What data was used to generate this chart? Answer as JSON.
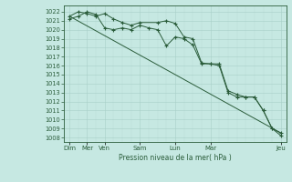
{
  "bg_color": "#c6e8e2",
  "grid_color_major": "#a8cfc8",
  "grid_color_minor": "#b8dcd8",
  "line_color": "#2a5c3a",
  "marker_color": "#2a5c3a",
  "xlabel_text": "Pression niveau de la mer( hPa )",
  "xlim": [
    -0.3,
    12.3
  ],
  "ylim": [
    1007.5,
    1022.7
  ],
  "yticks": [
    1008,
    1009,
    1010,
    1011,
    1012,
    1013,
    1014,
    1015,
    1016,
    1017,
    1018,
    1019,
    1020,
    1021,
    1022
  ],
  "xtick_positions": [
    0,
    1,
    2,
    4,
    6,
    8,
    12
  ],
  "xtick_labels": [
    "Dim",
    "Mer",
    "Ven",
    "Sam",
    "Lun",
    "Mar",
    "Jeu"
  ],
  "series": [
    {
      "x": [
        0,
        12
      ],
      "y": [
        1021.5,
        1008.5
      ],
      "has_markers": false
    },
    {
      "x": [
        0,
        0.5,
        1.0,
        1.5,
        2.0,
        2.5,
        3.0,
        3.5,
        4.0,
        5.0,
        5.5,
        6.0,
        6.5,
        7.0,
        7.5,
        8.0,
        8.5,
        9.0,
        9.5,
        10.0,
        10.5,
        11.0,
        11.5,
        12.0
      ],
      "y": [
        1021.5,
        1022.0,
        1021.8,
        1021.5,
        1021.8,
        1021.2,
        1020.8,
        1020.5,
        1020.8,
        1020.8,
        1021.0,
        1020.7,
        1019.2,
        1019.0,
        1016.3,
        1016.2,
        1016.2,
        1013.2,
        1012.8,
        1012.5,
        1012.5,
        1011.0,
        1009.0,
        1008.2
      ],
      "has_markers": true
    },
    {
      "x": [
        0,
        0.5,
        1.0,
        1.5,
        2.0,
        2.5,
        3.0,
        3.5,
        4.0,
        4.5,
        5.0,
        5.5,
        6.0,
        6.5,
        7.0,
        7.5,
        8.0,
        8.5,
        9.0,
        9.5,
        10.0,
        10.5,
        11.0,
        11.5,
        12.0
      ],
      "y": [
        1021.2,
        1021.5,
        1022.0,
        1021.7,
        1020.2,
        1020.0,
        1020.2,
        1020.0,
        1020.5,
        1020.2,
        1020.0,
        1018.2,
        1019.2,
        1019.0,
        1018.3,
        1016.2,
        1016.2,
        1016.0,
        1013.0,
        1012.5,
        1012.5,
        1012.5,
        1011.0,
        1009.0,
        1008.5
      ],
      "has_markers": true
    }
  ]
}
